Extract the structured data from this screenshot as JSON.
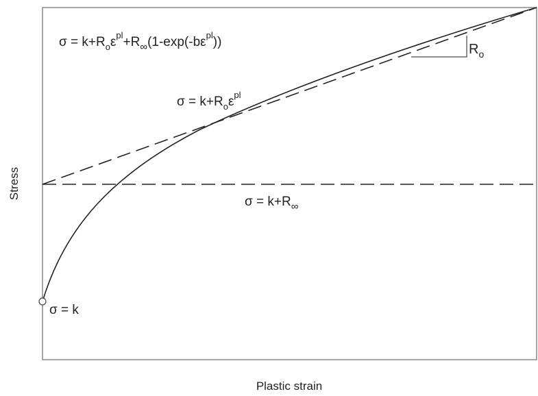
{
  "diagram": {
    "xlabel": "Plastic strain",
    "ylabel": "Stress",
    "equations": {
      "full": {
        "prefix": "σ = k+R",
        "sub1": "o",
        "eps1": "ε",
        "sup1": "pl",
        "mid": "+R",
        "sub2": "∞",
        "tail": "(1-exp(-bε",
        "sup2": "pl",
        "end": "))"
      },
      "linear": {
        "prefix": "σ = k+R",
        "sub": "o",
        "eps": "ε",
        "sup": "pl"
      },
      "saturation": {
        "prefix": "σ = k+R",
        "sub": "∞"
      },
      "initial": "σ = k"
    },
    "slope_label": {
      "main": "R",
      "sub": "o"
    }
  }
}
